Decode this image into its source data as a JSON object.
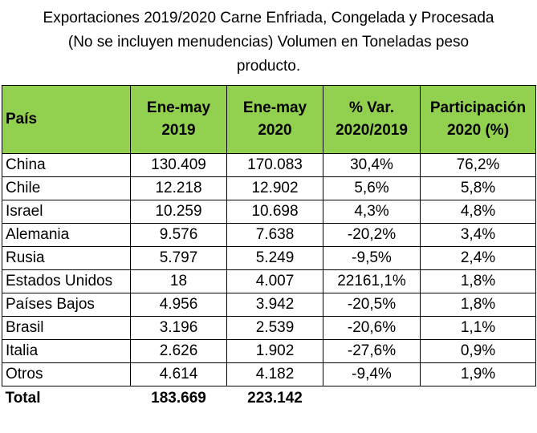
{
  "title": {
    "line1": "Exportaciones 2019/2020 Carne Enfriada, Congelada y Procesada",
    "line2": "(No se incluyen menudencias) Volumen en Toneladas peso",
    "line3": "producto."
  },
  "table": {
    "headers": {
      "country": "País",
      "col1_line1": "Ene-may",
      "col1_line2": "2019",
      "col2_line1": "Ene-may",
      "col2_line2": "2020",
      "col3_line1": "% Var.",
      "col3_line2": "2020/2019",
      "col4_line1": "Participación",
      "col4_line2": "2020 (%)"
    },
    "rows": [
      {
        "country": "China",
        "v2019": "130.409",
        "v2020": "170.083",
        "var": "30,4%",
        "share": "76,2%"
      },
      {
        "country": "Chile",
        "v2019": "12.218",
        "v2020": "12.902",
        "var": "5,6%",
        "share": "5,8%"
      },
      {
        "country": "Israel",
        "v2019": "10.259",
        "v2020": "10.698",
        "var": "4,3%",
        "share": "4,8%"
      },
      {
        "country": "Alemania",
        "v2019": "9.576",
        "v2020": "7.638",
        "var": "-20,2%",
        "share": "3,4%"
      },
      {
        "country": "Rusia",
        "v2019": "5.797",
        "v2020": "5.249",
        "var": "-9,5%",
        "share": "2,4%"
      },
      {
        "country": "Estados Unidos",
        "v2019": "18",
        "v2020": "4.007",
        "var": "22161,1%",
        "share": "1,8%"
      },
      {
        "country": "Países Bajos",
        "v2019": "4.956",
        "v2020": "3.942",
        "var": "-20,5%",
        "share": "1,8%"
      },
      {
        "country": "Brasil",
        "v2019": "3.196",
        "v2020": "2.539",
        "var": "-20,6%",
        "share": "1,1%"
      },
      {
        "country": "Italia",
        "v2019": "2.626",
        "v2020": "1.902",
        "var": "-27,6%",
        "share": "0,9%"
      },
      {
        "country": "Otros",
        "v2019": "4.614",
        "v2020": "4.182",
        "var": "-9,4%",
        "share": "1,9%"
      }
    ],
    "total": {
      "label": "Total",
      "v2019": "183.669",
      "v2020": "223.142"
    }
  },
  "colors": {
    "header_bg": "#92d050"
  }
}
